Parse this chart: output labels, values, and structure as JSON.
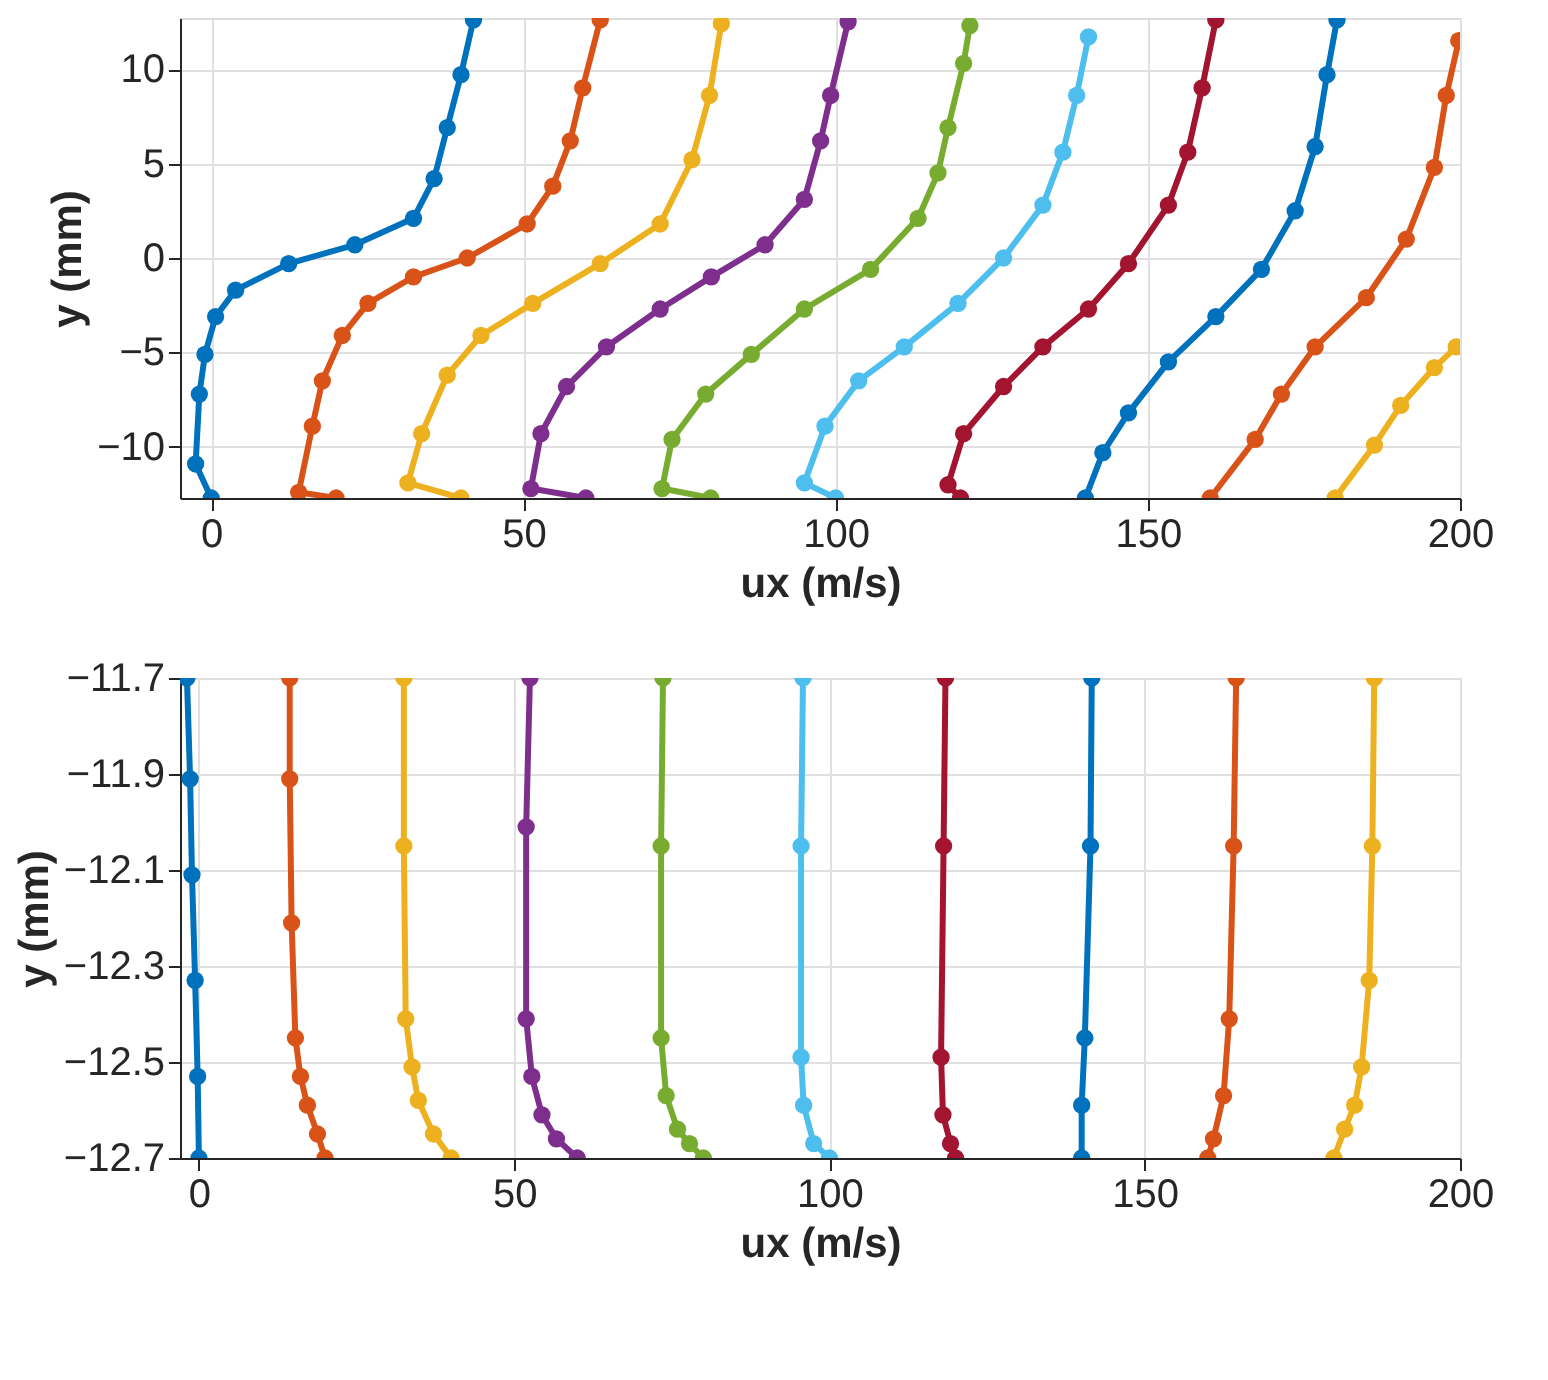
{
  "chart_data": [
    {
      "type": "line",
      "xlabel": "ux (m/s)",
      "ylabel": "y (mm)",
      "xlim": [
        -5,
        200
      ],
      "ylim": [
        -12.7,
        12.7
      ],
      "xticks": [
        0,
        50,
        100,
        150,
        200
      ],
      "yticks": [
        -10,
        -5,
        0,
        5,
        10
      ],
      "grid": true,
      "legend": false,
      "marker": "circle",
      "line_style": "solid",
      "series": [
        {
          "color": "#0072bd",
          "x": [
            0,
            -2.5,
            -1.9,
            -1,
            0.7,
            3.9,
            12.4,
            23,
            32.4,
            35.7,
            37.8,
            40,
            42
          ],
          "values": [
            -12.7,
            -10.9,
            -7.2,
            -5.1,
            -3.1,
            -1.7,
            -0.3,
            0.7,
            2.1,
            4.2,
            6.9,
            9.7,
            12.6
          ]
        },
        {
          "color": "#d95319",
          "x": [
            20,
            14,
            16.2,
            17.8,
            21,
            25.1,
            32.4,
            41,
            50.6,
            54.7,
            57.5,
            59.5,
            62.3
          ],
          "values": [
            -12.7,
            -12.4,
            -8.9,
            -6.5,
            -4.1,
            -2.4,
            -1,
            0,
            1.8,
            3.8,
            6.2,
            9,
            12.6
          ]
        },
        {
          "color": "#edb120",
          "x": [
            40,
            31.5,
            33.7,
            37.8,
            43.2,
            51.5,
            62.3,
            71.9,
            77,
            79.8,
            81.7
          ],
          "values": [
            -12.7,
            -11.9,
            -9.3,
            -6.2,
            -4.1,
            -2.4,
            -0.3,
            1.8,
            5.2,
            8.6,
            12.4
          ]
        },
        {
          "color": "#7e2f8e",
          "x": [
            60,
            51.2,
            52.8,
            56.9,
            63.3,
            71.9,
            80.1,
            88.7,
            95,
            97.6,
            99.2,
            102
          ],
          "values": [
            -12.7,
            -12.2,
            -9.3,
            -6.8,
            -4.7,
            -2.7,
            -1,
            0.7,
            3.1,
            6.2,
            8.6,
            12.5
          ]
        },
        {
          "color": "#77ac30",
          "x": [
            80,
            72.2,
            73.8,
            79.2,
            86.5,
            95,
            105.6,
            113.2,
            116.4,
            118,
            120.5,
            121.5
          ],
          "values": [
            -12.7,
            -12.2,
            -9.6,
            -7.2,
            -5.1,
            -2.7,
            -0.6,
            2.1,
            4.5,
            6.9,
            10.3,
            12.3
          ]
        },
        {
          "color": "#4dbeee",
          "x": [
            100,
            95,
            98.3,
            103.7,
            111,
            119.6,
            126.9,
            133.2,
            136.4,
            138.6,
            140.5
          ],
          "values": [
            -12.7,
            -11.9,
            -8.9,
            -6.5,
            -4.7,
            -2.4,
            0,
            2.8,
            5.6,
            8.6,
            11.7
          ]
        },
        {
          "color": "#a2142f",
          "x": [
            120,
            118,
            120.5,
            126.9,
            133.2,
            140.5,
            146.9,
            153.3,
            156.4,
            158.7,
            160.9
          ],
          "values": [
            -12.7,
            -12,
            -9.3,
            -6.8,
            -4.7,
            -2.7,
            -0.3,
            2.8,
            5.6,
            9,
            12.6
          ]
        },
        {
          "color": "#0072bd",
          "x": [
            140,
            142.8,
            146.9,
            153.3,
            160.9,
            168.2,
            173.6,
            176.8,
            178.7,
            180.3
          ],
          "values": [
            -12.7,
            -10.3,
            -8.2,
            -5.5,
            -3.1,
            -0.6,
            2.5,
            5.9,
            9.7,
            12.6
          ]
        },
        {
          "color": "#d95319",
          "x": [
            160,
            167.2,
            171.4,
            176.8,
            185,
            191.4,
            195.9,
            197.8,
            199.8
          ],
          "values": [
            -12.7,
            -9.6,
            -7.2,
            -4.7,
            -2.1,
            1,
            4.8,
            8.6,
            11.5
          ]
        },
        {
          "color": "#edb120",
          "x": [
            180,
            186.3,
            190.5,
            195.9,
            199.4
          ],
          "values": [
            -12.7,
            -9.9,
            -7.8,
            -5.8,
            -4.7
          ]
        }
      ]
    },
    {
      "type": "line",
      "xlabel": "ux (m/s)",
      "ylabel": "y (mm)",
      "xlim": [
        -3,
        200
      ],
      "ylim": [
        -12.7,
        -11.7
      ],
      "xticks": [
        0,
        50,
        100,
        150,
        200
      ],
      "yticks": [
        -12.7,
        -12.5,
        -12.3,
        -12.1,
        -11.9,
        -11.7
      ],
      "grid": true,
      "legend": false,
      "marker": "circle",
      "line_style": "solid",
      "series": [
        {
          "color": "#0072bd",
          "x": [
            -1.9,
            -1.4,
            -1.1,
            -0.6,
            -0.2,
            0
          ],
          "values": [
            -11.7,
            -11.91,
            -12.11,
            -12.33,
            -12.53,
            -12.7
          ]
        },
        {
          "color": "#d95319",
          "x": [
            14.4,
            14.4,
            14.7,
            15.3,
            16.1,
            17.2,
            18.8,
            20
          ],
          "values": [
            -11.7,
            -11.91,
            -12.21,
            -12.45,
            -12.53,
            -12.59,
            -12.65,
            -12.7
          ]
        },
        {
          "color": "#edb120",
          "x": [
            32.5,
            32.5,
            32.8,
            33.8,
            34.8,
            37.2,
            40
          ],
          "values": [
            -11.7,
            -12.05,
            -12.41,
            -12.51,
            -12.58,
            -12.65,
            -12.7
          ]
        },
        {
          "color": "#7e2f8e",
          "x": [
            52.5,
            51.9,
            51.9,
            52.8,
            54.4,
            56.7,
            60
          ],
          "values": [
            -11.7,
            -12.01,
            -12.41,
            -12.53,
            -12.61,
            -12.66,
            -12.7
          ]
        },
        {
          "color": "#77ac30",
          "x": [
            73.6,
            73.3,
            73.3,
            74.1,
            75.9,
            77.8,
            80
          ],
          "values": [
            -11.7,
            -12.05,
            -12.45,
            -12.57,
            -12.64,
            -12.67,
            -12.7
          ]
        },
        {
          "color": "#4dbeee",
          "x": [
            95.8,
            95.5,
            95.5,
            95.9,
            97.5,
            100
          ],
          "values": [
            -11.7,
            -12.05,
            -12.49,
            -12.59,
            -12.67,
            -12.7
          ]
        },
        {
          "color": "#a2142f",
          "x": [
            118.4,
            118.1,
            117.7,
            118,
            119.2,
            120
          ],
          "values": [
            -11.7,
            -12.05,
            -12.49,
            -12.61,
            -12.67,
            -12.7
          ]
        },
        {
          "color": "#0072bd",
          "x": [
            141.6,
            141.4,
            140.5,
            140,
            140
          ],
          "values": [
            -11.7,
            -12.05,
            -12.45,
            -12.59,
            -12.7
          ]
        },
        {
          "color": "#d95319",
          "x": [
            164.5,
            164.1,
            163.4,
            162.5,
            160.9,
            160
          ],
          "values": [
            -11.7,
            -12.05,
            -12.41,
            -12.57,
            -12.66,
            -12.7
          ]
        },
        {
          "color": "#edb120",
          "x": [
            186.4,
            186.1,
            185.6,
            184.4,
            183.3,
            181.7,
            180
          ],
          "values": [
            -11.7,
            -12.05,
            -12.33,
            -12.51,
            -12.59,
            -12.64,
            -12.7
          ]
        }
      ]
    }
  ]
}
